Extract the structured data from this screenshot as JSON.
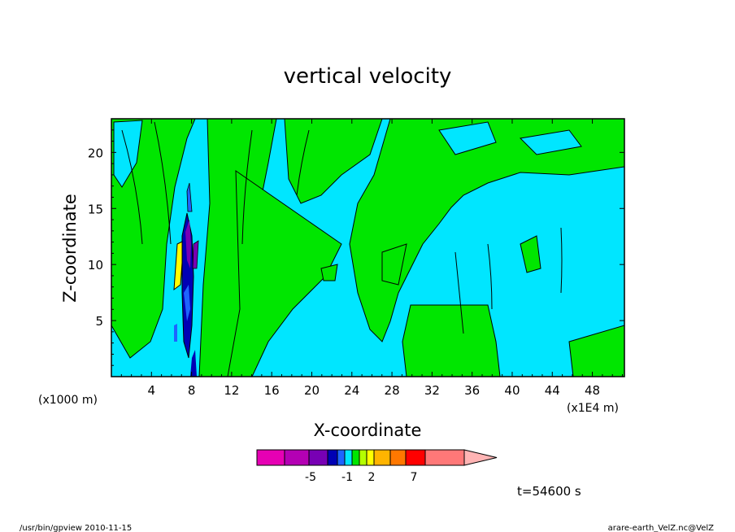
{
  "chart_data": {
    "type": "heatmap",
    "title": "vertical velocity",
    "xlabel": "X-coordinate",
    "ylabel": "Z-coordinate",
    "x_axis_unit": "(x1000 m)",
    "x_axis_unit2": "(x1E4 m)",
    "x_ticks": [
      "4",
      "8",
      "12",
      "16",
      "20",
      "24",
      "28",
      "32",
      "36",
      "40",
      "44",
      "48"
    ],
    "y_ticks": [
      "5",
      "10",
      "15",
      "20"
    ],
    "xlim": [
      0,
      51.2
    ],
    "ylim": [
      0,
      23
    ],
    "grid": false,
    "colorbar": {
      "colors": [
        "#e600b4",
        "#b400b4",
        "#7800b4",
        "#0000b4",
        "#1e64ff",
        "#00e6ff",
        "#00e600",
        "#b4ff00",
        "#ffff00",
        "#ffb400",
        "#ff7800",
        "#ff0000",
        "#ff7878",
        "#ffb4b4"
      ],
      "tick_labels": [
        "-5",
        "-1",
        "2",
        "7"
      ],
      "extend": "max"
    },
    "annotation": "t=54600 s"
  },
  "footer": {
    "left": "/usr/bin/gpview   2010-11-15",
    "right": "arare-earth_VelZ.nc@VelZ"
  }
}
